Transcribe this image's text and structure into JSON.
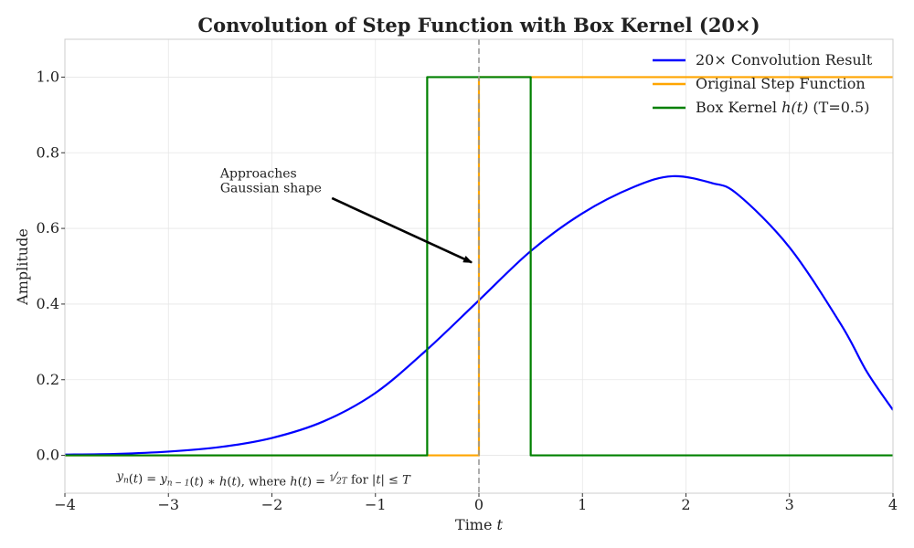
{
  "chart_data": {
    "type": "line",
    "title": "Convolution of Step Function with Box Kernel (20×)",
    "xlabel": "Time t",
    "xlabel_parts": {
      "text": "Time ",
      "var": "t"
    },
    "ylabel": "Amplitude",
    "xlim": [
      -4,
      4
    ],
    "ylim": [
      -0.1,
      1.1
    ],
    "xticks": [
      -4,
      -3,
      -2,
      -1,
      0,
      1,
      2,
      3,
      4
    ],
    "xtick_labels": [
      "−4",
      "−3",
      "−2",
      "−1",
      "0",
      "1",
      "2",
      "3",
      "4"
    ],
    "yticks": [
      0.0,
      0.2,
      0.4,
      0.6,
      0.8,
      1.0
    ],
    "ytick_labels": [
      "0.0",
      "0.2",
      "0.4",
      "0.6",
      "0.8",
      "1.0"
    ],
    "grid": true,
    "legend_position": "top-right",
    "series": [
      {
        "name": "20× Convolution Result",
        "color": "#0000ff",
        "x": [
          -4.0,
          -3.5,
          -3.0,
          -2.5,
          -2.0,
          -1.5,
          -1.0,
          -0.5,
          0.0,
          0.5,
          1.0,
          1.5,
          1.87,
          2.25,
          2.5,
          3.0,
          3.5,
          3.75,
          4.0
        ],
        "y": [
          0.002,
          0.004,
          0.01,
          0.022,
          0.046,
          0.09,
          0.165,
          0.28,
          0.41,
          0.54,
          0.64,
          0.71,
          0.738,
          0.72,
          0.69,
          0.55,
          0.345,
          0.22,
          0.12
        ]
      },
      {
        "name": "Original Step Function",
        "color": "#ffa500",
        "x": [
          -4.0,
          0.0,
          0.0,
          4.0
        ],
        "y": [
          0.0,
          0.0,
          1.0,
          1.0
        ]
      },
      {
        "name": "Box Kernel h(t) (T=0.5)",
        "legend_parts": {
          "text": "Box Kernel ",
          "var": "h(t)",
          "suffix": " (T=0.5)"
        },
        "color": "#008000",
        "x": [
          -4.0,
          -0.5,
          -0.5,
          0.5,
          0.5,
          4.0
        ],
        "y": [
          0.0,
          0.0,
          1.0,
          1.0,
          0.0,
          0.0
        ]
      }
    ],
    "reference_lines": [
      {
        "axis": "x",
        "value": 0,
        "style": "dashed",
        "color": "#999999"
      }
    ],
    "annotations": [
      {
        "text_lines": [
          "Approaches",
          "Gaussian shape"
        ],
        "text_x": -2.5,
        "text_y": 0.7,
        "arrow_to": [
          -0.07,
          0.51
        ]
      }
    ],
    "formula": {
      "parts": [
        {
          "t": "y",
          "i": true
        },
        {
          "t": "n",
          "i": true,
          "sub": true
        },
        {
          "t": "("
        },
        {
          "t": "t",
          "i": true
        },
        {
          "t": ") = "
        },
        {
          "t": "y",
          "i": true
        },
        {
          "t": "n − 1",
          "i": true,
          "sub": true
        },
        {
          "t": "("
        },
        {
          "t": "t",
          "i": true
        },
        {
          "t": ") ∗ "
        },
        {
          "t": "h",
          "i": true
        },
        {
          "t": "("
        },
        {
          "t": "t",
          "i": true
        },
        {
          "t": "), where "
        },
        {
          "t": "h",
          "i": true
        },
        {
          "t": "("
        },
        {
          "t": "t",
          "i": true
        },
        {
          "t": ") = "
        },
        {
          "t": "1",
          "sup": true
        },
        {
          "t": "⁄"
        },
        {
          "t": "2T",
          "i": true,
          "sub": true
        },
        {
          "t": " for |"
        },
        {
          "t": "t",
          "i": true
        },
        {
          "t": "| ≤ "
        },
        {
          "t": "T",
          "i": true
        }
      ],
      "x": -3.5,
      "y": -0.055
    }
  }
}
